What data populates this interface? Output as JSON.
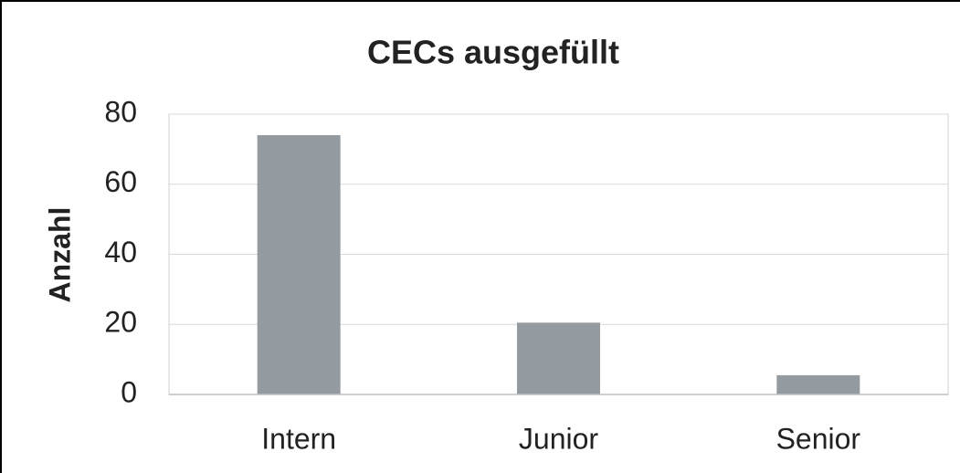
{
  "chart_data": {
    "type": "bar",
    "title": "CECs ausgefüllt",
    "y_label": "Anzahl",
    "categories": [
      "Intern",
      "Junior",
      "Senior"
    ],
    "values": [
      74,
      20.5,
      5.5
    ],
    "color": "#939aa0",
    "ylim": [
      0,
      80
    ],
    "yticks": [
      0,
      20,
      40,
      60,
      80
    ],
    "grid": true
  }
}
